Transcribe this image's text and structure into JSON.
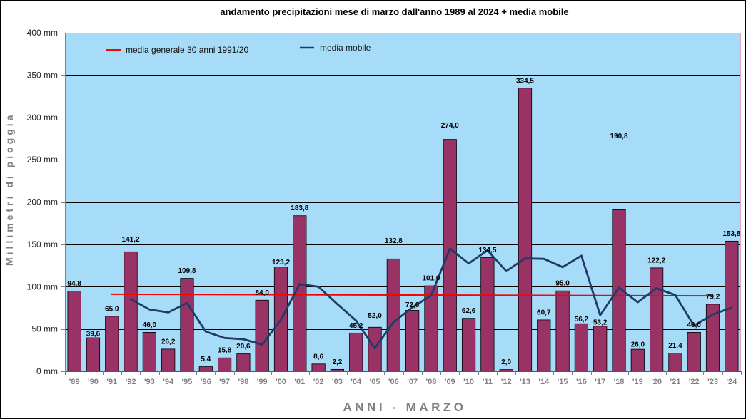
{
  "chart_data": {
    "type": "bar",
    "title": "andamento precipitazioni mese di marzo dall'anno 1989 al 2024 + media mobile",
    "xlabel": "ANNI - MARZO",
    "ylabel": "Millimetri di pioggia",
    "categories": [
      "'89",
      "'90",
      "'91",
      "'92",
      "'93",
      "'94",
      "'95",
      "'96",
      "'97",
      "'98",
      "'99",
      "'00",
      "'01",
      "'02",
      "'03",
      "'04",
      "'05",
      "'06",
      "'07",
      "'08",
      "'09",
      "'10",
      "'11",
      "'12",
      "'13",
      "'14",
      "'15",
      "'16",
      "'17",
      "'18",
      "'19",
      "'20",
      "'21",
      "'22",
      "'23",
      "'24"
    ],
    "ylim": [
      0,
      400
    ],
    "yticks": [
      0,
      50,
      100,
      150,
      200,
      250,
      300,
      350,
      400
    ],
    "ytick_labels": [
      "0 mm",
      "50 mm",
      "100 mm",
      "150 mm",
      "200 mm",
      "250 mm",
      "300 mm",
      "350 mm",
      "400 mm"
    ],
    "grid": true,
    "legend": "top-left",
    "plot_background": "#a7dcf9",
    "series": [
      {
        "type": "bar",
        "color": "#993366",
        "values": [
          94.8,
          39.6,
          65.0,
          141.2,
          46.0,
          26.2,
          109.8,
          5.4,
          15.8,
          20.6,
          84.0,
          123.2,
          183.8,
          8.6,
          2.2,
          45.2,
          52.0,
          132.8,
          72.0,
          101.0,
          274.0,
          62.6,
          134.5,
          2.0,
          334.5,
          60.7,
          95.0,
          56.2,
          53.2,
          190.8,
          26.0,
          122.2,
          21.4,
          46.0,
          79.2,
          153.8
        ],
        "data_labels": [
          "94,8",
          "39,6",
          "65,0",
          "141,2",
          "46,0",
          "26,2",
          "109,8",
          "5,4",
          "15,8",
          "20,6",
          "84,0",
          "123,2",
          "183,8",
          "8,6",
          "2,2",
          "45,2",
          "52,0",
          "132,8",
          "72,0",
          "101,0",
          "274,0",
          "62,6",
          "134,5",
          "2,0",
          "334,5",
          "60,7",
          "95,0",
          "56,2",
          "53,2",
          "190,8",
          "26,0",
          "122,2",
          "21,4",
          "46,0",
          "79,2",
          "153,8"
        ]
      },
      {
        "type": "line",
        "name": "media generale 30 anni 1991/20",
        "color": "#ff0000",
        "x": [
          "'91",
          "'23"
        ],
        "values": [
          91.0,
          89.2
        ]
      },
      {
        "type": "line",
        "name": "media mobile",
        "color": "#1f3b66",
        "x": [
          "'92",
          "'93",
          "'94",
          "'95",
          "'96",
          "'97",
          "'98",
          "'99",
          "'00",
          "'01",
          "'02",
          "'03",
          "'04",
          "'05",
          "'06",
          "'07",
          "'08",
          "'09",
          "'10",
          "'11",
          "'12",
          "'13",
          "'14",
          "'15",
          "'16",
          "'17",
          "'18",
          "'19",
          "'20",
          "'21",
          "'22",
          "'23",
          "'24"
        ],
        "values": [
          85.2,
          73.0,
          69.6,
          80.8,
          46.9,
          39.3,
          37.9,
          31.5,
          60.9,
          102.9,
          99.9,
          79.5,
          60.0,
          27.0,
          58.1,
          75.5,
          89.5,
          145.0,
          127.4,
          143.0,
          118.3,
          133.4,
          132.9,
          123.1,
          136.6,
          66.3,
          98.8,
          81.6,
          98.1,
          90.1,
          53.9,
          67.2,
          75.1
        ]
      }
    ]
  }
}
